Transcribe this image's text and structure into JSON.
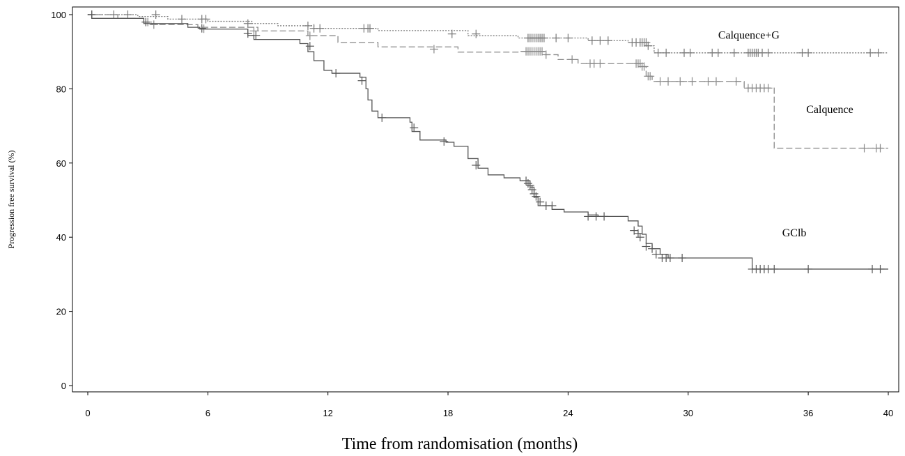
{
  "chart_data": {
    "type": "line",
    "subtype": "kaplan-meier step",
    "title": "",
    "xlabel": "Time from randomisation (months)",
    "ylabel": "Progression free survival (%)",
    "xlim": [
      0,
      40
    ],
    "ylim": [
      0,
      100
    ],
    "xticks": [
      0,
      6,
      12,
      18,
      24,
      30,
      36,
      40
    ],
    "yticks": [
      0,
      20,
      40,
      60,
      80,
      100
    ],
    "grid": false,
    "legend": "none (direct labels)",
    "series": [
      {
        "name": "Calquence+G",
        "color": "#777777",
        "dash": "dotted",
        "label_position": [
          31.5,
          93.5
        ],
        "steps": [
          [
            0,
            100
          ],
          [
            2.5,
            99.5
          ],
          [
            4.0,
            98.8
          ],
          [
            6.0,
            98.2
          ],
          [
            8.2,
            97.6
          ],
          [
            9.5,
            97.0
          ],
          [
            11.3,
            96.3
          ],
          [
            14.5,
            95.7
          ],
          [
            19.0,
            94.3
          ],
          [
            21.5,
            93.7
          ],
          [
            25.0,
            93.0
          ],
          [
            27.0,
            92.5
          ],
          [
            27.9,
            91.6
          ],
          [
            28.3,
            89.7
          ],
          [
            40,
            89.7
          ]
        ],
        "censors": [
          [
            0.2,
            100
          ],
          [
            1.3,
            100
          ],
          [
            2.0,
            100
          ],
          [
            3.4,
            100
          ],
          [
            4.7,
            98.8
          ],
          [
            5.7,
            98.8
          ],
          [
            5.9,
            98.8
          ],
          [
            8.0,
            97.6
          ],
          [
            11.0,
            97.0
          ],
          [
            11.3,
            96.3
          ],
          [
            11.6,
            96.3
          ],
          [
            13.8,
            96.3
          ],
          [
            14.0,
            96.3
          ],
          [
            14.1,
            96.3
          ],
          [
            18.2,
            94.8
          ],
          [
            19.4,
            94.8
          ],
          [
            22.0,
            93.7
          ],
          [
            22.1,
            93.7
          ],
          [
            22.2,
            93.7
          ],
          [
            22.3,
            93.7
          ],
          [
            22.4,
            93.7
          ],
          [
            22.5,
            93.7
          ],
          [
            22.6,
            93.7
          ],
          [
            22.7,
            93.7
          ],
          [
            22.8,
            93.7
          ],
          [
            23.4,
            93.7
          ],
          [
            24.0,
            93.7
          ],
          [
            25.2,
            93.0
          ],
          [
            25.6,
            93.0
          ],
          [
            26.0,
            93.0
          ],
          [
            27.2,
            92.5
          ],
          [
            27.4,
            92.5
          ],
          [
            27.6,
            92.5
          ],
          [
            27.7,
            92.5
          ],
          [
            27.8,
            92.5
          ],
          [
            27.9,
            92.5
          ],
          [
            28.0,
            91.6
          ],
          [
            28.5,
            89.7
          ],
          [
            28.9,
            89.7
          ],
          [
            29.8,
            89.7
          ],
          [
            30.1,
            89.7
          ],
          [
            31.2,
            89.7
          ],
          [
            31.5,
            89.7
          ],
          [
            32.3,
            89.7
          ],
          [
            33.0,
            89.7
          ],
          [
            33.1,
            89.7
          ],
          [
            33.2,
            89.7
          ],
          [
            33.3,
            89.7
          ],
          [
            33.4,
            89.7
          ],
          [
            33.5,
            89.7
          ],
          [
            33.7,
            89.7
          ],
          [
            34.0,
            89.7
          ],
          [
            35.7,
            89.7
          ],
          [
            36.0,
            89.7
          ],
          [
            39.1,
            89.7
          ],
          [
            39.5,
            89.7
          ]
        ]
      },
      {
        "name": "Calquence",
        "color": "#888888",
        "dash": "dashed",
        "label_position": [
          35.9,
          73.5
        ],
        "steps": [
          [
            0,
            100
          ],
          [
            1.5,
            99.0
          ],
          [
            2.8,
            98.0
          ],
          [
            3.2,
            97.3
          ],
          [
            5.5,
            96.6
          ],
          [
            8.5,
            95.6
          ],
          [
            11.0,
            94.3
          ],
          [
            12.5,
            92.5
          ],
          [
            14.5,
            91.3
          ],
          [
            18.5,
            89.9
          ],
          [
            21.5,
            90.1
          ],
          [
            22.8,
            89.2
          ],
          [
            23.5,
            87.9
          ],
          [
            24.5,
            86.8
          ],
          [
            27.6,
            86.0
          ],
          [
            27.9,
            83.4
          ],
          [
            28.2,
            82.0
          ],
          [
            32.8,
            80.2
          ],
          [
            33.8,
            80.2
          ],
          [
            34.3,
            64.0
          ],
          [
            40,
            64.0
          ]
        ],
        "censors": [
          [
            3.0,
            98.0
          ],
          [
            3.3,
            97.3
          ],
          [
            5.8,
            96.2
          ],
          [
            8.3,
            95.6
          ],
          [
            11.1,
            94.3
          ],
          [
            17.3,
            90.7
          ],
          [
            21.9,
            90.1
          ],
          [
            22.0,
            90.1
          ],
          [
            22.1,
            90.1
          ],
          [
            22.2,
            90.1
          ],
          [
            22.3,
            90.1
          ],
          [
            22.4,
            90.1
          ],
          [
            22.5,
            90.1
          ],
          [
            22.6,
            90.1
          ],
          [
            22.7,
            90.1
          ],
          [
            22.9,
            89.2
          ],
          [
            24.2,
            87.9
          ],
          [
            25.1,
            86.8
          ],
          [
            25.3,
            86.8
          ],
          [
            25.6,
            86.8
          ],
          [
            27.4,
            86.8
          ],
          [
            27.5,
            86.8
          ],
          [
            27.6,
            86.8
          ],
          [
            27.7,
            86.0
          ],
          [
            27.8,
            86.0
          ],
          [
            28.0,
            83.4
          ],
          [
            28.1,
            83.4
          ],
          [
            28.6,
            82.0
          ],
          [
            29.0,
            82.0
          ],
          [
            29.6,
            82.0
          ],
          [
            30.2,
            82.0
          ],
          [
            31.0,
            82.0
          ],
          [
            31.4,
            82.0
          ],
          [
            32.4,
            82.0
          ],
          [
            33.0,
            80.2
          ],
          [
            33.2,
            80.2
          ],
          [
            33.4,
            80.2
          ],
          [
            33.6,
            80.2
          ],
          [
            33.8,
            80.2
          ],
          [
            34.0,
            80.2
          ],
          [
            38.8,
            64.0
          ],
          [
            39.4,
            64.0
          ],
          [
            39.6,
            64.0
          ]
        ]
      },
      {
        "name": "GClb",
        "color": "#555555",
        "dash": "solid",
        "label_position": [
          34.7,
          40.2
        ],
        "steps": [
          [
            0,
            100
          ],
          [
            0.2,
            99.0
          ],
          [
            2.8,
            97.6
          ],
          [
            5.0,
            96.6
          ],
          [
            5.6,
            96.1
          ],
          [
            8.0,
            94.4
          ],
          [
            8.3,
            93.3
          ],
          [
            10.6,
            92.2
          ],
          [
            11.0,
            90.0
          ],
          [
            11.3,
            87.6
          ],
          [
            11.8,
            85.0
          ],
          [
            12.2,
            84.2
          ],
          [
            13.6,
            83.1
          ],
          [
            13.9,
            80.0
          ],
          [
            14.0,
            77.0
          ],
          [
            14.2,
            74.0
          ],
          [
            14.5,
            72.2
          ],
          [
            16.1,
            71.0
          ],
          [
            16.2,
            68.5
          ],
          [
            16.6,
            66.2
          ],
          [
            17.9,
            65.6
          ],
          [
            18.3,
            64.5
          ],
          [
            19.0,
            61.2
          ],
          [
            19.5,
            58.6
          ],
          [
            20.0,
            56.8
          ],
          [
            20.8,
            56.0
          ],
          [
            21.6,
            55.2
          ],
          [
            22.1,
            53.5
          ],
          [
            22.3,
            50.8
          ],
          [
            22.5,
            48.5
          ],
          [
            23.2,
            47.5
          ],
          [
            23.8,
            46.8
          ],
          [
            25.0,
            46.0
          ],
          [
            25.5,
            45.6
          ],
          [
            27.0,
            44.4
          ],
          [
            27.5,
            43.0
          ],
          [
            27.7,
            40.8
          ],
          [
            27.9,
            38.3
          ],
          [
            28.2,
            36.9
          ],
          [
            28.6,
            35.4
          ],
          [
            29.0,
            34.4
          ],
          [
            33.0,
            34.4
          ],
          [
            33.2,
            31.4
          ],
          [
            40,
            31.4
          ]
        ],
        "censors": [
          [
            0.2,
            100
          ],
          [
            2.9,
            98.0
          ],
          [
            5.7,
            96.3
          ],
          [
            8.0,
            94.9
          ],
          [
            8.4,
            94.4
          ],
          [
            11.1,
            91.5
          ],
          [
            12.4,
            84.2
          ],
          [
            13.7,
            82.2
          ],
          [
            14.7,
            72.2
          ],
          [
            16.3,
            69.5
          ],
          [
            17.8,
            65.8
          ],
          [
            19.4,
            59.4
          ],
          [
            21.9,
            55.2
          ],
          [
            22.0,
            54.5
          ],
          [
            22.1,
            54.0
          ],
          [
            22.2,
            52.8
          ],
          [
            22.3,
            51.7
          ],
          [
            22.4,
            51.0
          ],
          [
            22.6,
            49.5
          ],
          [
            22.9,
            48.5
          ],
          [
            23.2,
            48.5
          ],
          [
            25.0,
            45.6
          ],
          [
            25.4,
            45.6
          ],
          [
            25.8,
            45.6
          ],
          [
            27.3,
            41.8
          ],
          [
            27.5,
            41.0
          ],
          [
            27.6,
            40.0
          ],
          [
            27.9,
            37.5
          ],
          [
            28.2,
            36.9
          ],
          [
            28.4,
            35.4
          ],
          [
            28.7,
            34.4
          ],
          [
            28.9,
            34.4
          ],
          [
            29.1,
            34.4
          ],
          [
            29.7,
            34.4
          ],
          [
            33.2,
            31.4
          ],
          [
            33.4,
            31.4
          ],
          [
            33.6,
            31.4
          ],
          [
            33.8,
            31.4
          ],
          [
            34.0,
            31.4
          ],
          [
            34.3,
            31.4
          ],
          [
            36.0,
            31.4
          ],
          [
            39.2,
            31.4
          ],
          [
            39.6,
            31.4
          ]
        ]
      }
    ]
  }
}
